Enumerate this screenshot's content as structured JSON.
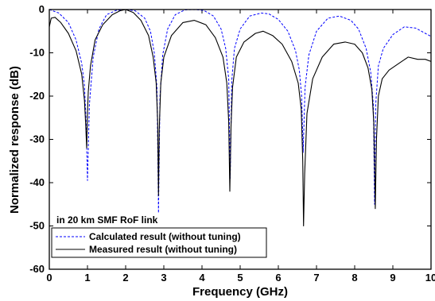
{
  "chart_data": {
    "type": "line",
    "title": "",
    "xlabel": "Frequency (GHz)",
    "ylabel": "Normalized response (dB)",
    "xlim": [
      0,
      10
    ],
    "ylim": [
      -60,
      0
    ],
    "xticks": [
      0,
      1,
      2,
      3,
      4,
      5,
      6,
      7,
      8,
      9,
      10
    ],
    "yticks": [
      0,
      -10,
      -20,
      -30,
      -40,
      -50,
      -60
    ],
    "xtick_labels": [
      "0",
      "1",
      "2",
      "3",
      "4",
      "5",
      "6",
      "7",
      "8",
      "9",
      "10"
    ],
    "ytick_labels": [
      "0",
      "-10",
      "-20",
      "-30",
      "-40",
      "-50",
      "-60"
    ],
    "grid": false,
    "legend_placement": "bottom-left",
    "legend_title": "in 20 km SMF RoF link",
    "series": [
      {
        "name": "Calculated result (without tuning)",
        "style": "dashed",
        "color": "#0000ff",
        "x": [
          0.0,
          0.25,
          0.5,
          0.7,
          0.85,
          0.92,
          0.96,
          1.0,
          1.05,
          1.15,
          1.3,
          1.5,
          1.75,
          2.0,
          2.25,
          2.5,
          2.65,
          2.75,
          2.82,
          2.86,
          2.9,
          2.97,
          3.1,
          3.3,
          3.55,
          3.8,
          4.05,
          4.3,
          4.5,
          4.62,
          4.7,
          4.74,
          4.78,
          4.85,
          5.0,
          5.25,
          5.55,
          5.75,
          6.0,
          6.25,
          6.45,
          6.55,
          6.61,
          6.65,
          6.7,
          6.8,
          7.0,
          7.3,
          7.6,
          7.9,
          8.1,
          8.3,
          8.42,
          8.49,
          8.52,
          8.55,
          8.62,
          8.75,
          9.0,
          9.3,
          9.6,
          9.85,
          10.0
        ],
        "y": [
          0.0,
          -0.8,
          -3.0,
          -7.0,
          -12.5,
          -17.5,
          -25.0,
          -39.5,
          -22.0,
          -11.0,
          -4.5,
          -1.2,
          -0.2,
          0.0,
          -0.3,
          -2.0,
          -5.0,
          -10.0,
          -18.0,
          -47.0,
          -20.0,
          -10.5,
          -4.5,
          -1.2,
          -0.1,
          0.0,
          -0.2,
          -1.5,
          -4.5,
          -9.0,
          -16.0,
          -39.0,
          -16.5,
          -9.0,
          -4.5,
          -1.5,
          -0.8,
          -1.0,
          -2.3,
          -5.0,
          -9.5,
          -14.0,
          -20.0,
          -33.0,
          -18.0,
          -10.5,
          -5.0,
          -2.0,
          -1.5,
          -2.5,
          -4.5,
          -9.0,
          -14.5,
          -22.0,
          -45.0,
          -22.0,
          -13.0,
          -9.0,
          -5.8,
          -4.0,
          -4.3,
          -5.5,
          -6.2
        ]
      },
      {
        "name": "Measured result (without tuning)",
        "style": "solid",
        "color": "#000000",
        "x": [
          0.0,
          0.05,
          0.15,
          0.3,
          0.5,
          0.7,
          0.85,
          0.92,
          0.95,
          0.98,
          1.0,
          1.02,
          1.08,
          1.2,
          1.4,
          1.65,
          1.85,
          2.0,
          2.2,
          2.4,
          2.6,
          2.72,
          2.8,
          2.84,
          2.86,
          2.88,
          2.92,
          3.0,
          3.2,
          3.5,
          3.8,
          4.1,
          4.35,
          4.55,
          4.65,
          4.7,
          4.73,
          4.76,
          4.8,
          4.9,
          5.1,
          5.4,
          5.6,
          5.85,
          6.1,
          6.35,
          6.52,
          6.6,
          6.64,
          6.66,
          6.69,
          6.75,
          6.9,
          7.15,
          7.45,
          7.75,
          8.0,
          8.2,
          8.35,
          8.45,
          8.5,
          8.54,
          8.57,
          8.62,
          8.72,
          8.9,
          9.15,
          9.4,
          9.65,
          9.85,
          10.0
        ],
        "y": [
          -4.0,
          -2.0,
          -1.8,
          -3.0,
          -5.5,
          -9.5,
          -15.0,
          -21.0,
          -26.0,
          -32.0,
          -24.0,
          -19.0,
          -13.0,
          -7.0,
          -3.5,
          -1.2,
          -0.3,
          0.0,
          -0.7,
          -2.5,
          -6.0,
          -11.0,
          -17.0,
          -26.0,
          -43.0,
          -28.0,
          -17.0,
          -11.0,
          -6.0,
          -3.0,
          -2.5,
          -3.5,
          -6.5,
          -11.0,
          -17.0,
          -26.0,
          -42.0,
          -27.0,
          -18.0,
          -11.0,
          -7.5,
          -5.5,
          -5.0,
          -6.0,
          -8.0,
          -12.0,
          -17.0,
          -23.0,
          -35.0,
          -50.0,
          -38.0,
          -24.0,
          -16.0,
          -11.0,
          -8.0,
          -7.5,
          -8.0,
          -10.0,
          -13.5,
          -18.5,
          -26.0,
          -46.0,
          -30.0,
          -20.0,
          -16.0,
          -14.0,
          -12.5,
          -11.0,
          -11.5,
          -11.5,
          -12.0
        ]
      }
    ]
  }
}
